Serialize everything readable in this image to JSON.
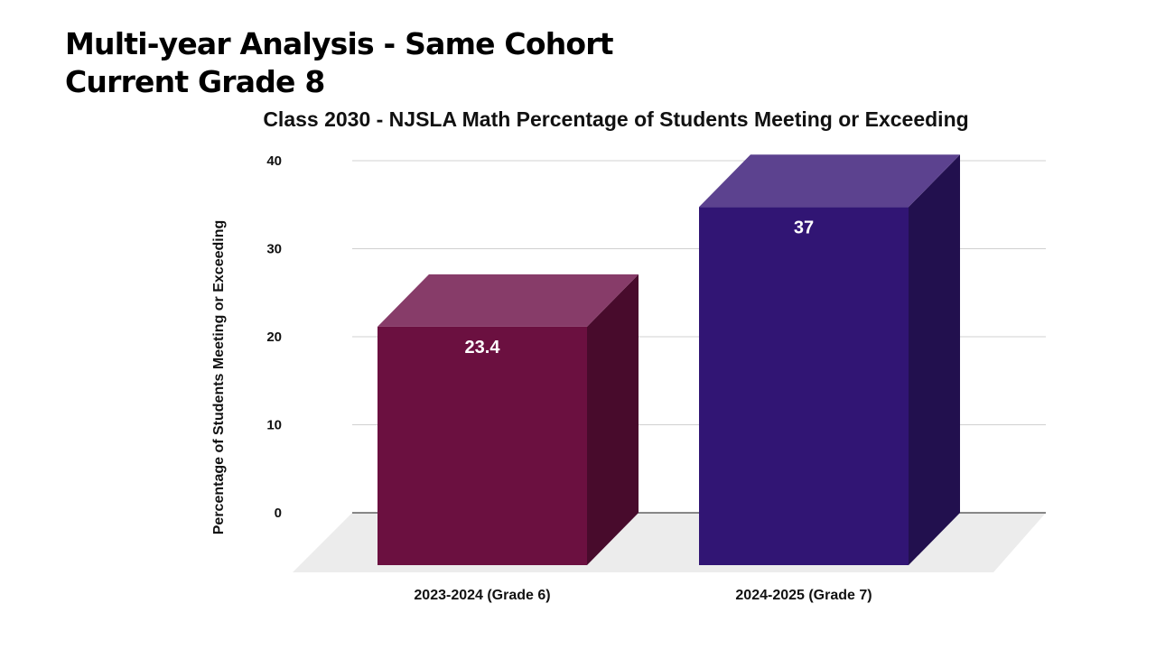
{
  "slide": {
    "title_line1": "Multi-year Analysis - Same Cohort",
    "title_line2": "Current Grade 8"
  },
  "chart_data": {
    "type": "bar",
    "title": "Class  2030 - NJSLA Math Percentage of Students Meeting or Exceeding",
    "xlabel": "",
    "ylabel": "Percentage of Students Meeting or Exceeding",
    "categories": [
      "2023-2024 (Grade 6)",
      "2024-2025 (Grade 7)"
    ],
    "values": [
      23.4,
      37
    ],
    "data_labels": [
      "23.4",
      "37"
    ],
    "ylim": [
      0,
      40
    ],
    "yticks": [
      0,
      10,
      20,
      30,
      40
    ],
    "grid": true,
    "legend": "none",
    "style": "3d-column",
    "colors": [
      "#6b1040",
      "#311574"
    ],
    "top_colors": [
      "#873c69",
      "#5c428f"
    ],
    "side_colors": [
      "#480b2c",
      "#22104e"
    ]
  }
}
